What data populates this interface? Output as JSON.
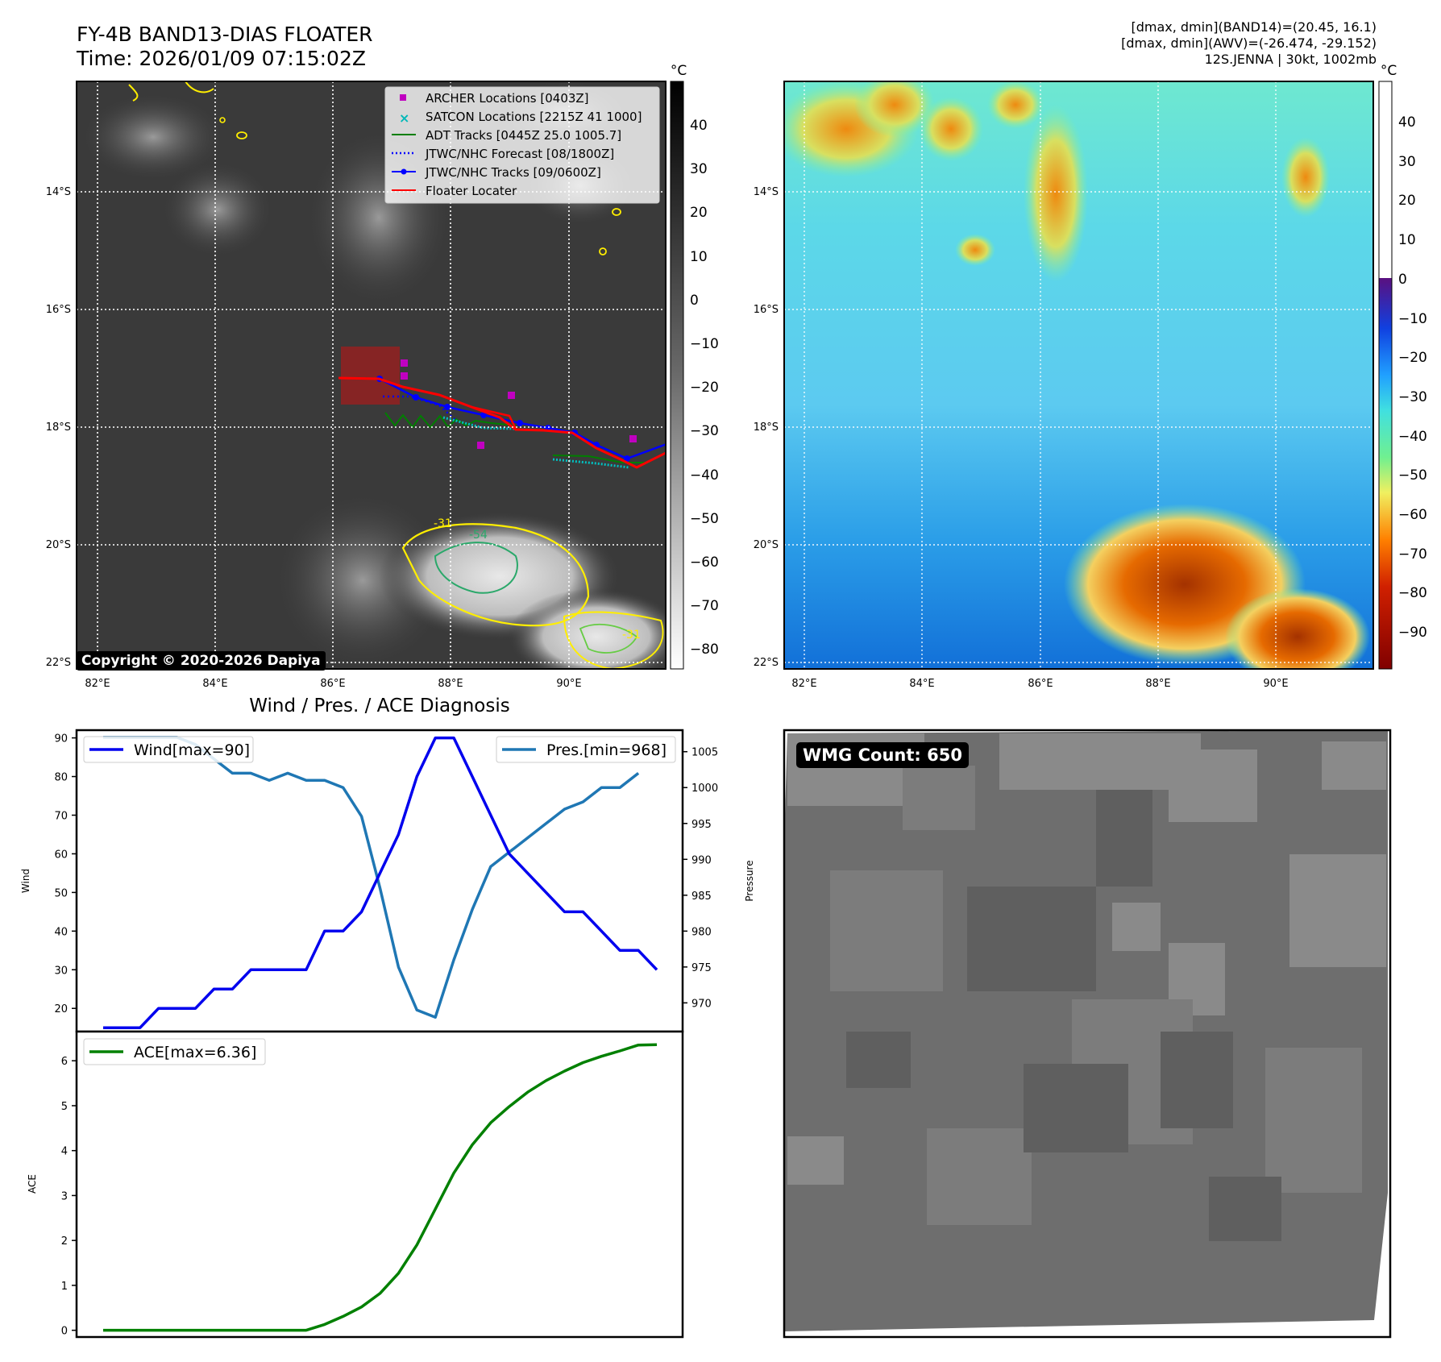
{
  "header": {
    "title_line1": "FY-4B BAND13-DIAS FLOATER",
    "title_line2": "Time: 2026/01/09 07:15:02Z",
    "info_line1": "[dmax, dmin](BAND14)=(20.45, 16.1)",
    "info_line2": "[dmax, dmin](AWV)=(-26.474, -29.152)",
    "info_line3": "12S.JENNA | 30kt, 1002mb"
  },
  "ir_panel": {
    "lon_ticks": [
      "82°E",
      "84°E",
      "86°E",
      "88°E",
      "90°E"
    ],
    "lat_ticks": [
      "14°S",
      "16°S",
      "18°S",
      "20°S",
      "22°S"
    ],
    "colorbar_unit": "°C",
    "colorbar_ticks": [
      "40",
      "30",
      "20",
      "10",
      "0",
      "−10",
      "−20",
      "−30",
      "−40",
      "−50",
      "−60",
      "−70",
      "−80"
    ],
    "copyright": "Copyright © 2020-2026 Dapiya",
    "contour_labels": [
      "-31",
      "-54",
      "-31"
    ],
    "legend": [
      {
        "label": "ARCHER Locations [0403Z]",
        "color": "#c000c0"
      },
      {
        "label": "SATCON Locations [2215Z 41 1000]",
        "color": "#00b8b8"
      },
      {
        "label": "ADT Tracks [0445Z 25.0 1005.7]",
        "color": "#007f00"
      },
      {
        "label": "JTWC/NHC Forecast [08/1800Z]",
        "color": "#0000ff"
      },
      {
        "label": "JTWC/NHC Tracks [09/0600Z]",
        "color": "#0000ff"
      },
      {
        "label": "Floater Locater",
        "color": "#ff0000"
      }
    ]
  },
  "dias_panel": {
    "lon_ticks": [
      "82°E",
      "84°E",
      "86°E",
      "88°E",
      "90°E"
    ],
    "lat_ticks": [
      "14°S",
      "16°S",
      "18°S",
      "20°S",
      "22°S"
    ],
    "colorbar_unit": "°C",
    "colorbar_ticks": [
      "40",
      "30",
      "20",
      "10",
      "0",
      "−10",
      "−20",
      "−30",
      "−40",
      "−50",
      "−60",
      "−70",
      "−80",
      "−90"
    ]
  },
  "wmg_panel": {
    "badge": "WMG Count: 650"
  },
  "chart_data": [
    {
      "type": "line",
      "title": "Wind / Pres. / ACE Diagnosis",
      "ylabel": "Wind",
      "y2label": "Pressure",
      "ylim": [
        14,
        92
      ],
      "y2lim": [
        966,
        1008
      ],
      "yticks": [
        "20",
        "30",
        "40",
        "50",
        "60",
        "70",
        "80",
        "90"
      ],
      "y2ticks": [
        "970",
        "975",
        "980",
        "985",
        "990",
        "995",
        "1000",
        "1005"
      ],
      "series": [
        {
          "name": "Wind[max=90]",
          "color": "#0000ee",
          "values": [
            15,
            15,
            15,
            20,
            20,
            20,
            25,
            25,
            30,
            30,
            30,
            30,
            40,
            40,
            45,
            55,
            65,
            80,
            90,
            90,
            80,
            70,
            60,
            55,
            50,
            45,
            45,
            40,
            35,
            35,
            30
          ]
        },
        {
          "name": "Pres.[min=968]",
          "color": "#1f77b4",
          "values": [
            1007,
            1007,
            1007,
            1007,
            1007,
            1006,
            1004,
            1002,
            1002,
            1001,
            1002,
            1001,
            1001,
            1000,
            996,
            986,
            975,
            969,
            968,
            976,
            983,
            989,
            991,
            993,
            995,
            997,
            998,
            1000,
            1000,
            1002,
            null
          ]
        }
      ],
      "legend_labels": [
        "Wind[max=90]",
        "Pres.[min=968]"
      ]
    },
    {
      "type": "line",
      "ylabel": "ACE",
      "ylim": [
        -0.15,
        6.65
      ],
      "yticks": [
        "0",
        "1",
        "2",
        "3",
        "4",
        "5",
        "6"
      ],
      "series": [
        {
          "name": "ACE[max=6.36]",
          "color": "#008000",
          "values": [
            0,
            0,
            0,
            0,
            0,
            0,
            0,
            0,
            0,
            0,
            0,
            0,
            0.13,
            0.31,
            0.52,
            0.82,
            1.27,
            1.9,
            2.7,
            3.5,
            4.13,
            4.62,
            4.98,
            5.3,
            5.56,
            5.77,
            5.96,
            6.1,
            6.22,
            6.35,
            6.36
          ]
        }
      ],
      "legend_labels": [
        "ACE[max=6.36]"
      ]
    }
  ]
}
